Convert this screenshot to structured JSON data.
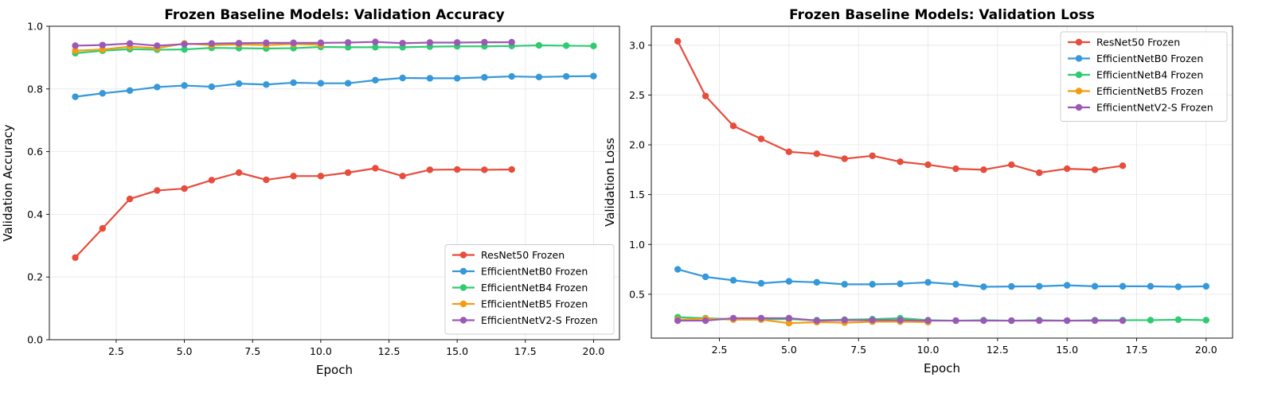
{
  "figure": {
    "background": "#ffffff"
  },
  "chart_data": [
    {
      "type": "line",
      "title": "Frozen Baseline Models: Validation Accuracy",
      "xlabel": "Epoch",
      "ylabel": "Validation Accuracy",
      "xlim": [
        0.05,
        20.95
      ],
      "ylim": [
        0.0,
        1.0
      ],
      "xticks": [
        2.5,
        5.0,
        7.5,
        10.0,
        12.5,
        15.0,
        17.5,
        20.0
      ],
      "xtick_labels": [
        "2.5",
        "5.0",
        "7.5",
        "10.0",
        "12.5",
        "15.0",
        "17.5",
        "20.0"
      ],
      "yticks": [
        0.0,
        0.2,
        0.4,
        0.6,
        0.8,
        1.0
      ],
      "ytick_labels": [
        "0.0",
        "0.2",
        "0.4",
        "0.6",
        "0.8",
        "1.0"
      ],
      "grid": true,
      "legend_position": "lower-right",
      "series": [
        {
          "name": "ResNet50 Frozen",
          "color": "#e74c3c",
          "x": [
            1,
            2,
            3,
            4,
            5,
            6,
            7,
            8,
            9,
            10,
            11,
            12,
            13,
            14,
            15,
            16,
            17
          ],
          "values": [
            0.262,
            0.355,
            0.449,
            0.476,
            0.482,
            0.509,
            0.533,
            0.51,
            0.522,
            0.522,
            0.533,
            0.547,
            0.522,
            0.542,
            0.543,
            0.542,
            0.543
          ]
        },
        {
          "name": "EfficientNetB0 Frozen",
          "color": "#3498db",
          "x": [
            1,
            2,
            3,
            4,
            5,
            6,
            7,
            8,
            9,
            10,
            11,
            12,
            13,
            14,
            15,
            16,
            17,
            18,
            19,
            20
          ],
          "values": [
            0.775,
            0.786,
            0.795,
            0.806,
            0.811,
            0.807,
            0.817,
            0.814,
            0.82,
            0.818,
            0.818,
            0.828,
            0.835,
            0.834,
            0.834,
            0.837,
            0.84,
            0.838,
            0.84,
            0.841
          ]
        },
        {
          "name": "EfficientNetB4 Frozen",
          "color": "#2ecc71",
          "x": [
            1,
            2,
            3,
            4,
            5,
            6,
            7,
            8,
            9,
            10,
            11,
            12,
            13,
            14,
            15,
            16,
            17,
            18,
            19,
            20
          ],
          "values": [
            0.914,
            0.922,
            0.927,
            0.925,
            0.926,
            0.931,
            0.93,
            0.929,
            0.93,
            0.934,
            0.933,
            0.933,
            0.933,
            0.935,
            0.936,
            0.936,
            0.937,
            0.939,
            0.938,
            0.937
          ]
        },
        {
          "name": "EfficientNetB5 Frozen",
          "color": "#f39c12",
          "x": [
            1,
            2,
            3,
            4,
            5,
            6,
            7,
            8,
            9,
            10
          ],
          "values": [
            0.922,
            0.926,
            0.935,
            0.93,
            0.945,
            0.94,
            0.942,
            0.94,
            0.943,
            0.941
          ]
        },
        {
          "name": "EfficientNetV2-S Frozen",
          "color": "#9b59b6",
          "x": [
            1,
            2,
            3,
            4,
            5,
            6,
            7,
            8,
            9,
            10,
            11,
            12,
            13,
            14,
            15,
            16,
            17
          ],
          "values": [
            0.938,
            0.94,
            0.945,
            0.938,
            0.943,
            0.945,
            0.946,
            0.947,
            0.947,
            0.947,
            0.948,
            0.95,
            0.946,
            0.948,
            0.948,
            0.949,
            0.949
          ]
        }
      ]
    },
    {
      "type": "line",
      "title": "Frozen Baseline Models: Validation Loss",
      "xlabel": "Epoch",
      "ylabel": "Validation Loss",
      "xlim": [
        0.05,
        20.95
      ],
      "ylim": [
        0.06,
        3.19
      ],
      "xticks": [
        2.5,
        5.0,
        7.5,
        10.0,
        12.5,
        15.0,
        17.5,
        20.0
      ],
      "xtick_labels": [
        "2.5",
        "5.0",
        "7.5",
        "10.0",
        "12.5",
        "15.0",
        "17.5",
        "20.0"
      ],
      "yticks": [
        0.5,
        1.0,
        1.5,
        2.0,
        2.5,
        3.0
      ],
      "ytick_labels": [
        "0.5",
        "1.0",
        "1.5",
        "2.0",
        "2.5",
        "3.0"
      ],
      "grid": true,
      "legend_position": "upper-right",
      "series": [
        {
          "name": "ResNet50 Frozen",
          "color": "#e74c3c",
          "x": [
            1,
            2,
            3,
            4,
            5,
            6,
            7,
            8,
            9,
            10,
            11,
            12,
            13,
            14,
            15,
            16,
            17
          ],
          "values": [
            3.04,
            2.49,
            2.19,
            2.06,
            1.93,
            1.91,
            1.86,
            1.89,
            1.83,
            1.8,
            1.76,
            1.75,
            1.8,
            1.72,
            1.76,
            1.75,
            1.79
          ]
        },
        {
          "name": "EfficientNetB0 Frozen",
          "color": "#3498db",
          "x": [
            1,
            2,
            3,
            4,
            5,
            6,
            7,
            8,
            9,
            10,
            11,
            12,
            13,
            14,
            15,
            16,
            17,
            18,
            19,
            20
          ],
          "values": [
            0.75,
            0.675,
            0.64,
            0.61,
            0.63,
            0.62,
            0.6,
            0.6,
            0.605,
            0.62,
            0.6,
            0.575,
            0.578,
            0.58,
            0.59,
            0.58,
            0.58,
            0.58,
            0.575,
            0.58
          ]
        },
        {
          "name": "EfficientNetB4 Frozen",
          "color": "#2ecc71",
          "x": [
            1,
            2,
            3,
            4,
            5,
            6,
            7,
            8,
            9,
            10,
            11,
            12,
            13,
            14,
            15,
            16,
            17,
            18,
            19,
            20
          ],
          "values": [
            0.27,
            0.26,
            0.25,
            0.25,
            0.25,
            0.24,
            0.245,
            0.25,
            0.26,
            0.24,
            0.235,
            0.24,
            0.235,
            0.24,
            0.235,
            0.24,
            0.24,
            0.24,
            0.245,
            0.24
          ]
        },
        {
          "name": "EfficientNetB5 Frozen",
          "color": "#f39c12",
          "x": [
            1,
            2,
            3,
            4,
            5,
            6,
            7,
            8,
            9,
            10
          ],
          "values": [
            0.245,
            0.255,
            0.245,
            0.245,
            0.21,
            0.22,
            0.215,
            0.225,
            0.225,
            0.22
          ]
        },
        {
          "name": "EfficientNetV2-S Frozen",
          "color": "#9b59b6",
          "x": [
            1,
            2,
            3,
            4,
            5,
            6,
            7,
            8,
            9,
            10,
            11,
            12,
            13,
            14,
            15,
            16,
            17
          ],
          "values": [
            0.235,
            0.235,
            0.26,
            0.26,
            0.26,
            0.235,
            0.24,
            0.24,
            0.24,
            0.235,
            0.235,
            0.235,
            0.235,
            0.235,
            0.235,
            0.235,
            0.235
          ]
        }
      ]
    }
  ]
}
